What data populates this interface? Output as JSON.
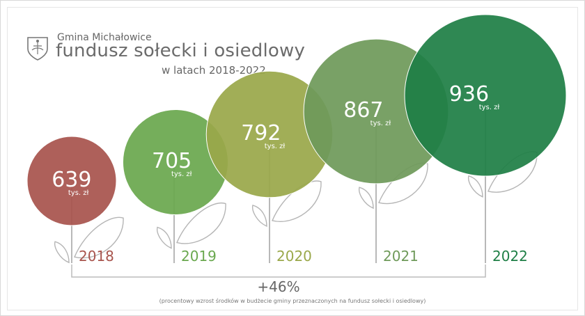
{
  "header": {
    "org": "Gmina Michałowice",
    "title": "fundusz sołecki i osiedlowy",
    "subtitle": "w latach 2018-2022"
  },
  "summary": {
    "total_change": "+46%",
    "note": "(procentowy wzrost środków w budżecie gminy przeznaczonych na fundusz sołecki i osiedlowy)"
  },
  "chart_data": {
    "type": "bar",
    "categories": [
      "2018",
      "2019",
      "2020",
      "2021",
      "2022"
    ],
    "values": [
      639,
      705,
      792,
      867,
      936
    ],
    "unit": "tys. zł",
    "colors": [
      "#a8544d",
      "#6aa84f",
      "#9aa84a",
      "#6f9a5a",
      "#1f7f46"
    ]
  }
}
